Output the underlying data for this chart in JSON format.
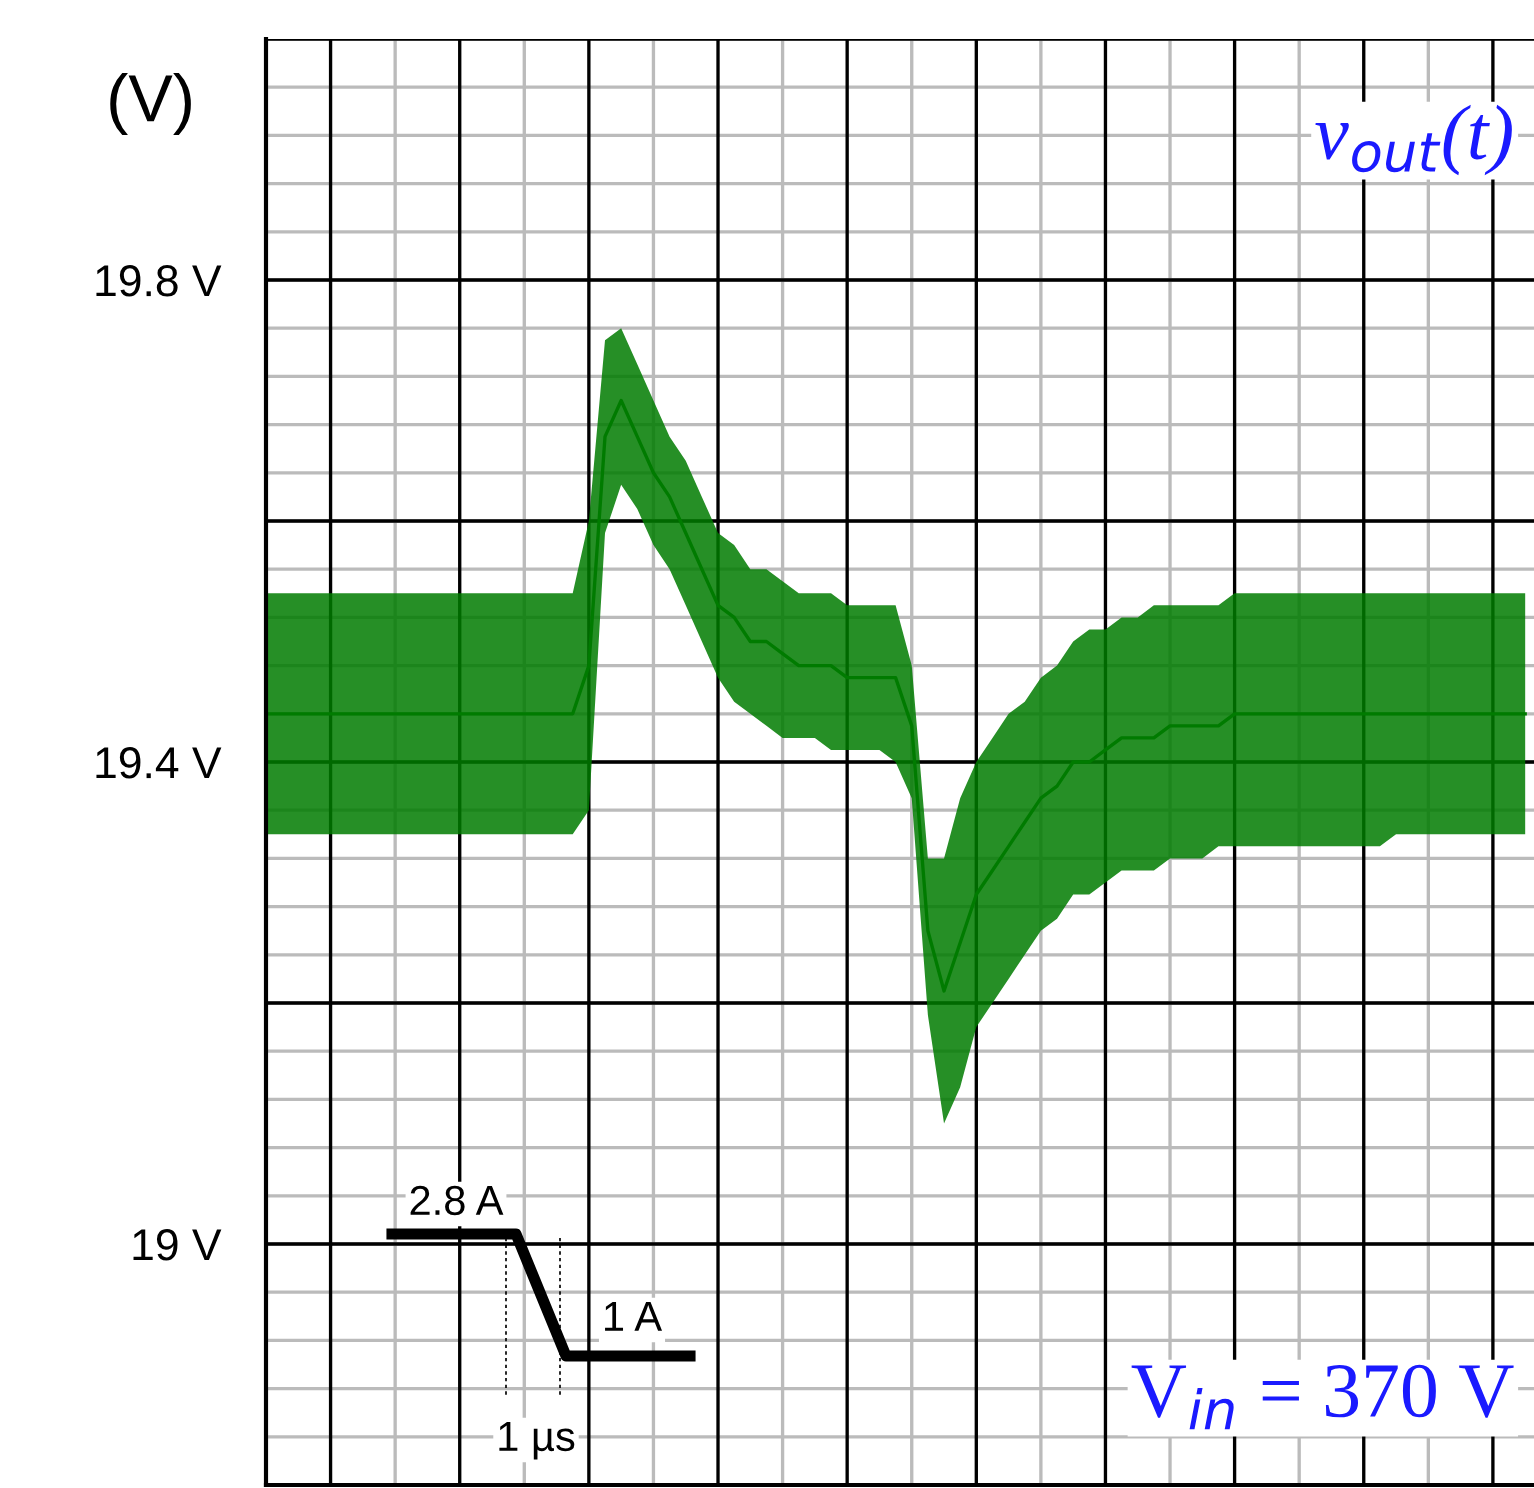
{
  "chart_data": {
    "type": "line",
    "ylabel": "(V)",
    "categories": [
      null,
      null,
      null,
      null,
      null,
      null,
      null,
      null,
      null,
      null,
      null,
      null,
      null,
      null,
      null,
      null,
      null,
      null,
      null,
      null,
      null,
      null,
      null,
      null,
      null,
      null,
      null,
      null,
      null,
      null,
      null,
      null,
      null,
      null,
      null,
      null,
      null,
      null,
      null,
      null,
      null,
      null,
      null,
      null,
      null,
      null,
      null,
      null,
      null,
      null,
      null,
      null,
      null,
      null,
      null,
      null,
      null,
      null,
      null,
      null,
      null,
      null,
      null,
      null,
      null,
      null,
      null,
      null,
      null,
      null,
      null,
      null,
      null,
      null,
      null,
      null,
      null,
      null,
      null
    ],
    "series": [
      {
        "name": "v$_{out}$(t)",
        "color": "#007b00",
        "values": [
          19.44,
          19.44,
          19.44,
          19.44,
          19.44,
          19.44,
          19.44,
          19.44,
          19.44,
          19.44,
          19.44,
          19.44,
          19.44,
          19.44,
          19.44,
          19.44,
          19.44,
          19.44,
          19.44,
          19.44,
          19.48,
          19.67,
          19.7,
          19.67,
          19.64,
          19.62,
          19.59,
          19.56,
          19.53,
          19.52,
          19.5,
          19.5,
          19.49,
          19.48,
          19.48,
          19.48,
          19.47,
          19.47,
          19.47,
          19.47,
          19.43,
          19.26,
          19.21,
          19.25,
          19.29,
          19.31,
          19.33,
          19.35,
          19.37,
          19.38,
          19.4,
          19.4,
          19.41,
          19.42,
          19.42,
          19.42,
          19.43,
          19.43,
          19.43,
          19.43,
          19.44,
          19.44,
          19.44,
          19.44,
          19.44,
          19.44,
          19.44,
          19.44,
          19.44,
          19.44,
          19.44,
          19.44,
          19.44,
          19.44,
          19.44,
          19.44,
          19.44,
          19.44,
          19.44
        ],
        "upper": [
          19.54,
          19.54,
          19.54,
          19.54,
          19.54,
          19.54,
          19.54,
          19.54,
          19.54,
          19.54,
          19.54,
          19.54,
          19.54,
          19.54,
          19.54,
          19.54,
          19.54,
          19.54,
          19.54,
          19.54,
          19.6,
          19.75,
          19.76,
          19.73,
          19.7,
          19.67,
          19.65,
          19.62,
          19.59,
          19.58,
          19.56,
          19.56,
          19.55,
          19.54,
          19.54,
          19.54,
          19.53,
          19.53,
          19.53,
          19.53,
          19.48,
          19.32,
          19.32,
          19.37,
          19.4,
          19.42,
          19.44,
          19.45,
          19.47,
          19.48,
          19.5,
          19.51,
          19.51,
          19.52,
          19.52,
          19.53,
          19.53,
          19.53,
          19.53,
          19.53,
          19.54,
          19.54,
          19.54,
          19.54,
          19.54,
          19.54,
          19.54,
          19.54,
          19.54,
          19.54,
          19.54,
          19.54,
          19.54,
          19.54,
          19.54,
          19.54,
          19.54,
          19.54,
          19.54
        ],
        "lower": [
          19.34,
          19.34,
          19.34,
          19.34,
          19.34,
          19.34,
          19.34,
          19.34,
          19.34,
          19.34,
          19.34,
          19.34,
          19.34,
          19.34,
          19.34,
          19.34,
          19.34,
          19.34,
          19.34,
          19.34,
          19.36,
          19.59,
          19.63,
          19.61,
          19.58,
          19.56,
          19.53,
          19.5,
          19.47,
          19.45,
          19.44,
          19.43,
          19.42,
          19.42,
          19.42,
          19.41,
          19.41,
          19.41,
          19.41,
          19.4,
          19.37,
          19.19,
          19.1,
          19.13,
          19.18,
          19.2,
          19.22,
          19.24,
          19.26,
          19.27,
          19.29,
          19.29,
          19.3,
          19.31,
          19.31,
          19.31,
          19.32,
          19.32,
          19.32,
          19.33,
          19.33,
          19.33,
          19.33,
          19.33,
          19.33,
          19.33,
          19.33,
          19.33,
          19.33,
          19.33,
          19.34,
          19.34,
          19.34,
          19.34,
          19.34,
          19.34,
          19.34,
          19.34,
          19.34
        ]
      }
    ],
    "ylim": [
      18.8,
      20.0
    ],
    "yticks": [
      {
        "value": 19.0,
        "label": "19 V"
      },
      {
        "value": 19.2,
        "label": null
      },
      {
        "value": 19.4,
        "label": "19.4 V"
      },
      {
        "value": 19.6,
        "label": null
      },
      {
        "value": 19.8,
        "label": "19.8 V"
      },
      {
        "value": 20.0,
        "label": null
      }
    ],
    "grid": true,
    "annotations": [
      "V$_{in}$ = 370 V",
      "2.8 A",
      "1 A",
      "1 µs"
    ]
  }
}
